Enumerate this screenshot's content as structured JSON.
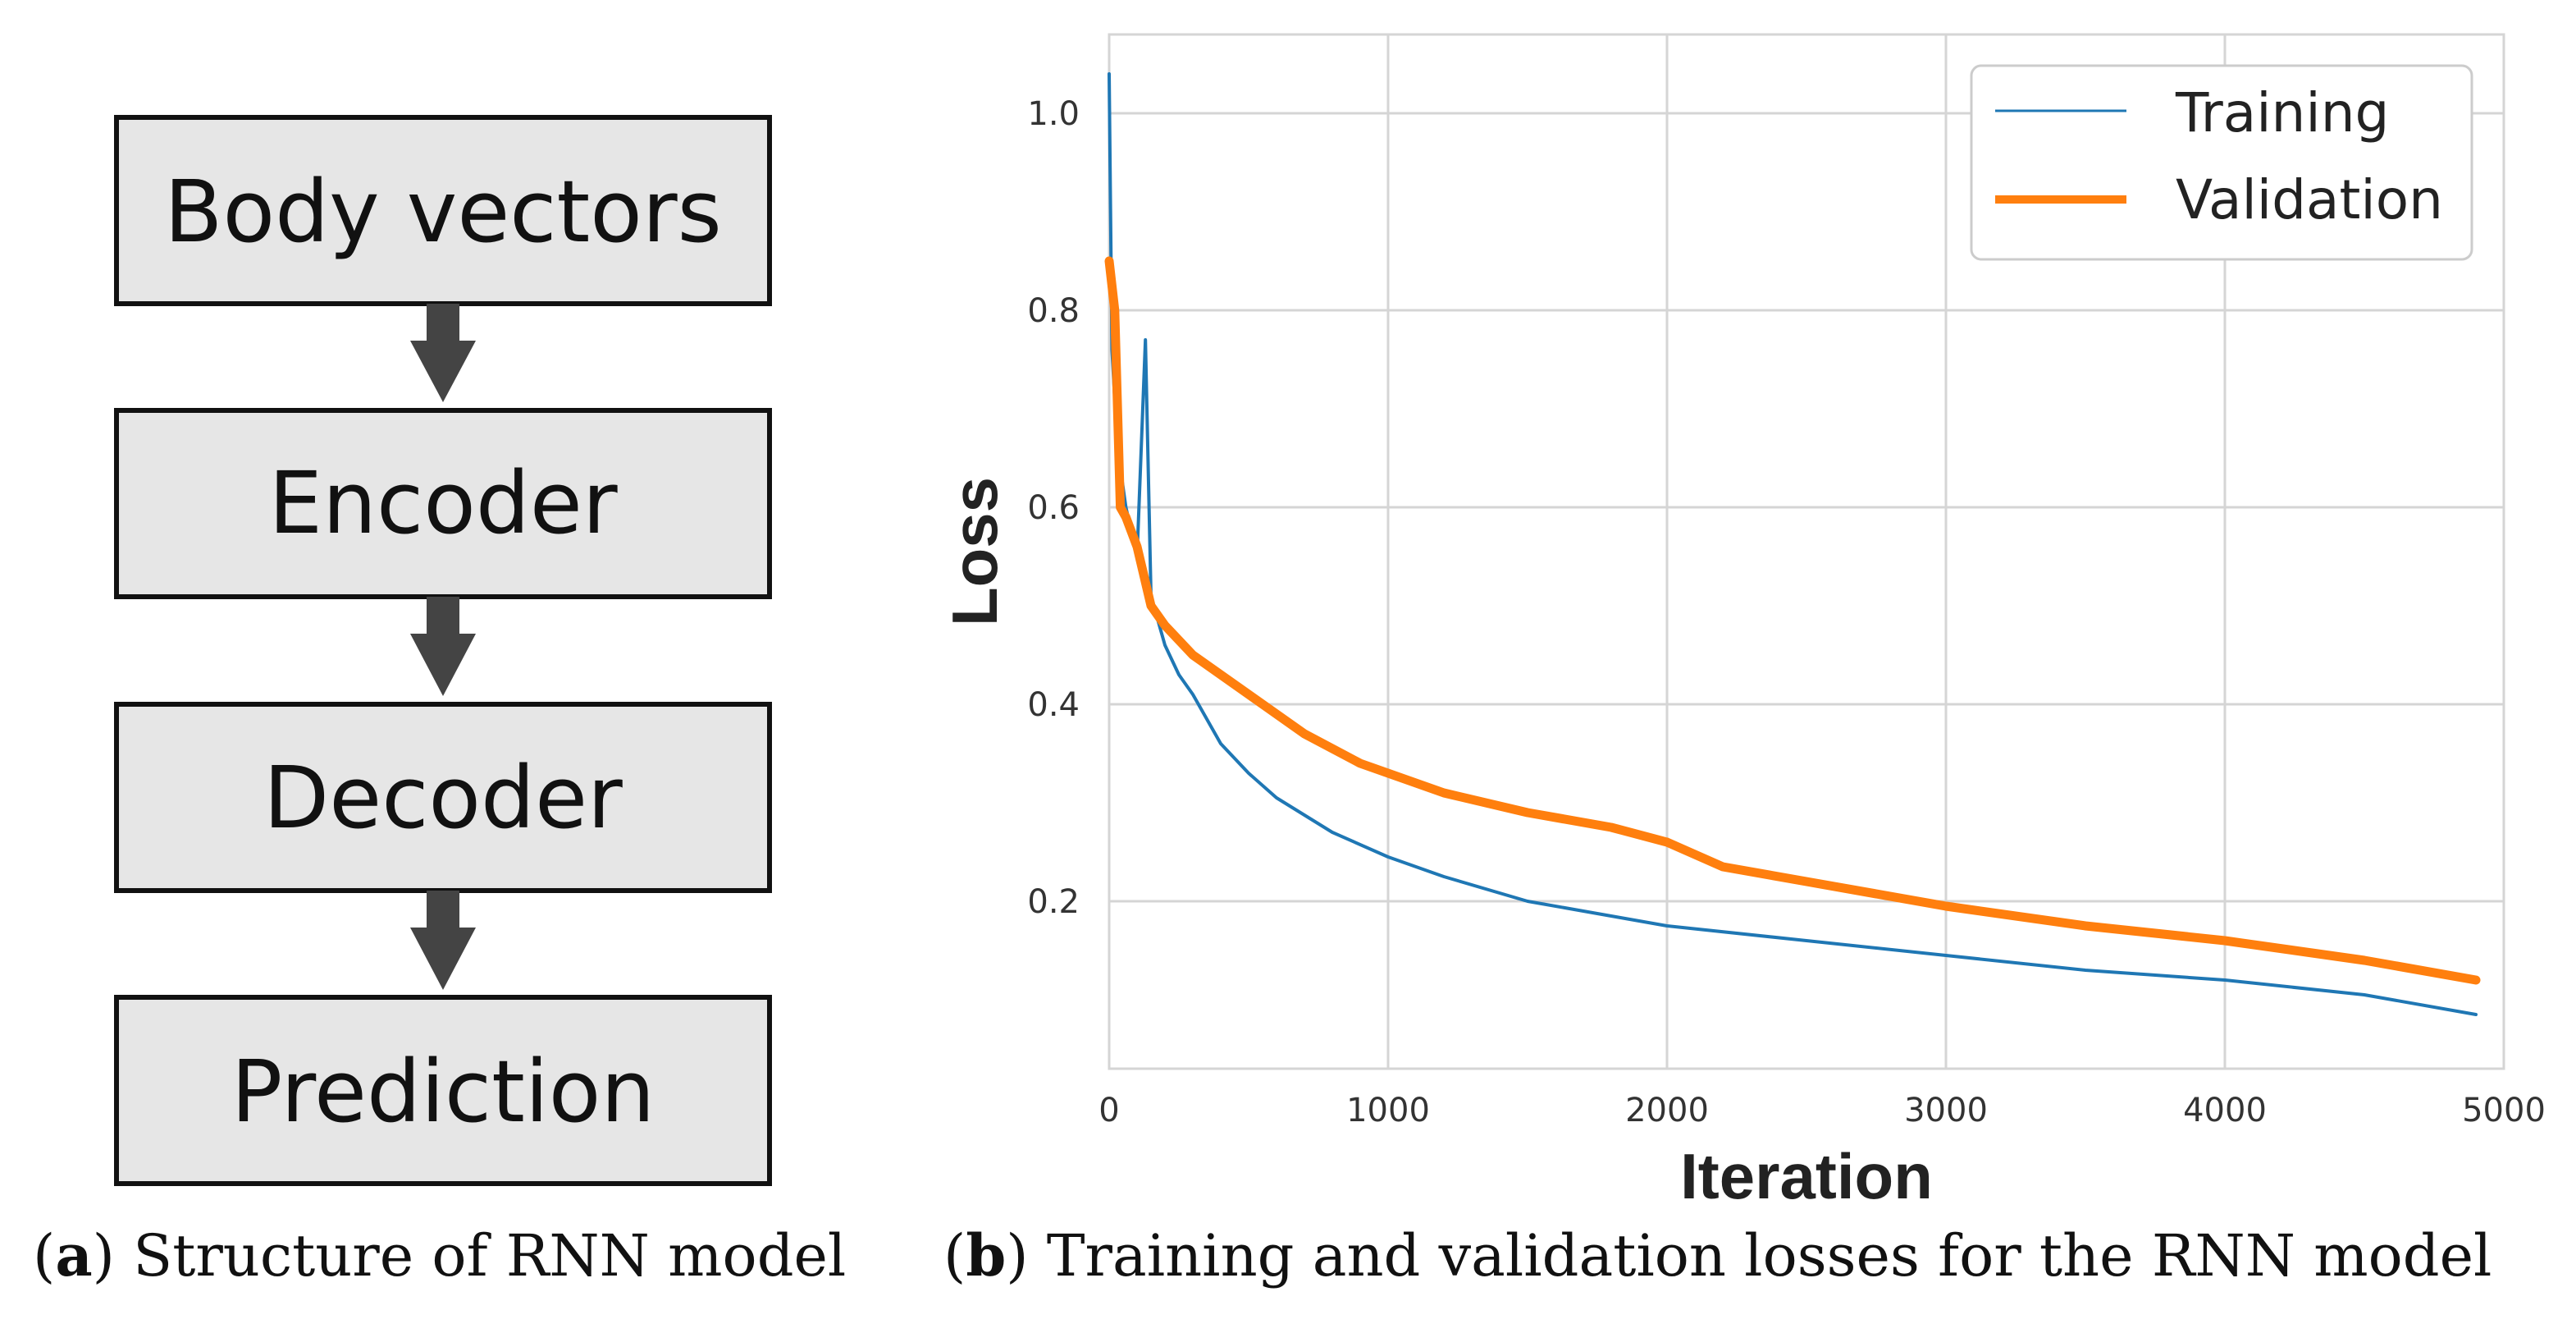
{
  "flowchart": {
    "boxes": [
      "Body vectors",
      "Encoder",
      "Decoder",
      "Prediction"
    ],
    "caption_letter": "a",
    "caption_text": "Structure of RNN model"
  },
  "plot": {
    "caption_letter": "b",
    "caption_text": "Training and validation losses for the RNN model"
  },
  "colors": {
    "training": "#1f77b4",
    "validation": "#ff7f0e",
    "grid": "#d5d5d5"
  },
  "chart_data": {
    "type": "line",
    "title": "",
    "xlabel": "Iteration",
    "ylabel": "Loss",
    "xlim": [
      0,
      5000
    ],
    "ylim": [
      0.03,
      1.08
    ],
    "xticks": [
      0,
      1000,
      2000,
      3000,
      4000,
      5000
    ],
    "yticks": [
      0.2,
      0.4,
      0.6,
      0.8,
      1.0
    ],
    "xtick_labels": [
      "0",
      "1000",
      "2000",
      "3000",
      "4000",
      "5000"
    ],
    "ytick_labels": [
      "0.2",
      "0.4",
      "0.6",
      "0.8",
      "1.0"
    ],
    "grid": true,
    "legend_position": "top-right",
    "series": [
      {
        "name": "Training",
        "x": [
          0,
          10,
          30,
          60,
          100,
          130,
          150,
          200,
          250,
          300,
          400,
          500,
          600,
          800,
          1000,
          1200,
          1500,
          1800,
          2000,
          2500,
          3000,
          3500,
          4000,
          4500,
          4900
        ],
        "y": [
          1.04,
          0.76,
          0.66,
          0.6,
          0.55,
          0.77,
          0.51,
          0.46,
          0.43,
          0.41,
          0.36,
          0.33,
          0.305,
          0.27,
          0.245,
          0.225,
          0.2,
          0.185,
          0.175,
          0.16,
          0.145,
          0.13,
          0.12,
          0.105,
          0.085
        ]
      },
      {
        "name": "Validation",
        "x": [
          0,
          20,
          40,
          60,
          100,
          150,
          200,
          300,
          400,
          500,
          700,
          900,
          1000,
          1200,
          1500,
          1800,
          2000,
          2200,
          2500,
          3000,
          3500,
          4000,
          4500,
          4900
        ],
        "y": [
          0.85,
          0.8,
          0.6,
          0.59,
          0.56,
          0.5,
          0.48,
          0.45,
          0.43,
          0.41,
          0.37,
          0.34,
          0.33,
          0.31,
          0.29,
          0.275,
          0.26,
          0.235,
          0.22,
          0.195,
          0.175,
          0.16,
          0.14,
          0.12
        ]
      }
    ]
  }
}
